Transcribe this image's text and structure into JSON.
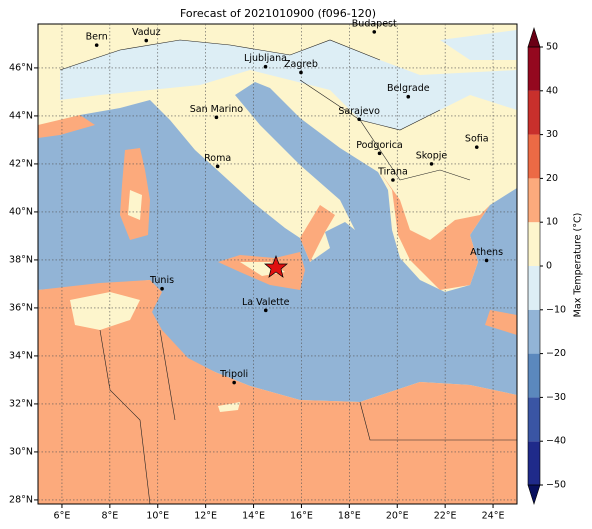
{
  "title": "Forecast of 2021010900 (f096-120)",
  "map": {
    "xlim": [
      5,
      25
    ],
    "ylim": [
      27.83,
      47.83
    ],
    "xticks": [
      {
        "value": 6,
        "label": "6°E"
      },
      {
        "value": 8,
        "label": "8°E"
      },
      {
        "value": 10,
        "label": "10°E"
      },
      {
        "value": 12,
        "label": "12°E"
      },
      {
        "value": 14,
        "label": "14°E"
      },
      {
        "value": 16,
        "label": "16°E"
      },
      {
        "value": 18,
        "label": "18°E"
      },
      {
        "value": 20,
        "label": "20°E"
      },
      {
        "value": 22,
        "label": "22°E"
      },
      {
        "value": 24,
        "label": "24°E"
      }
    ],
    "yticks": [
      {
        "value": 28,
        "label": "28°N"
      },
      {
        "value": 30,
        "label": "30°N"
      },
      {
        "value": 32,
        "label": "32°N"
      },
      {
        "value": 34,
        "label": "34°N"
      },
      {
        "value": 36,
        "label": "36°N"
      },
      {
        "value": 38,
        "label": "38°N"
      },
      {
        "value": 40,
        "label": "40°N"
      },
      {
        "value": 42,
        "label": "42°N"
      },
      {
        "value": 44,
        "label": "44°N"
      },
      {
        "value": 46,
        "label": "46°N"
      }
    ],
    "cities": [
      "Bern",
      "Vaduz",
      "Budapest",
      "Ljubljana",
      "Zagreb",
      "Belgrade",
      "San Marino",
      "Sarajevo",
      "Sofia",
      "Roma",
      "Podgorica",
      "Skopje",
      "Tirana",
      "Athens",
      "Tunis",
      "La Valette",
      "Tripoli"
    ]
  },
  "colorbar": {
    "label": "Max Temperature (°C)",
    "lim": [
      -50,
      50
    ],
    "ticks": [
      {
        "value": -50,
        "label": "−50"
      },
      {
        "value": -40,
        "label": "−40"
      },
      {
        "value": -30,
        "label": "−30"
      },
      {
        "value": -20,
        "label": "−20"
      },
      {
        "value": -10,
        "label": "−10"
      },
      0,
      10,
      20,
      30,
      40,
      50
    ],
    "colors": [
      "#1f2a8a",
      "#3a55a4",
      "#5b88bd",
      "#92b4d6",
      "#ddeef5",
      "#fdf5cc",
      "#fcaa7c",
      "#ec6a45",
      "#c8302c",
      "#94081f"
    ],
    "extend_colors": [
      "#08105e",
      "#6a0015"
    ]
  }
}
